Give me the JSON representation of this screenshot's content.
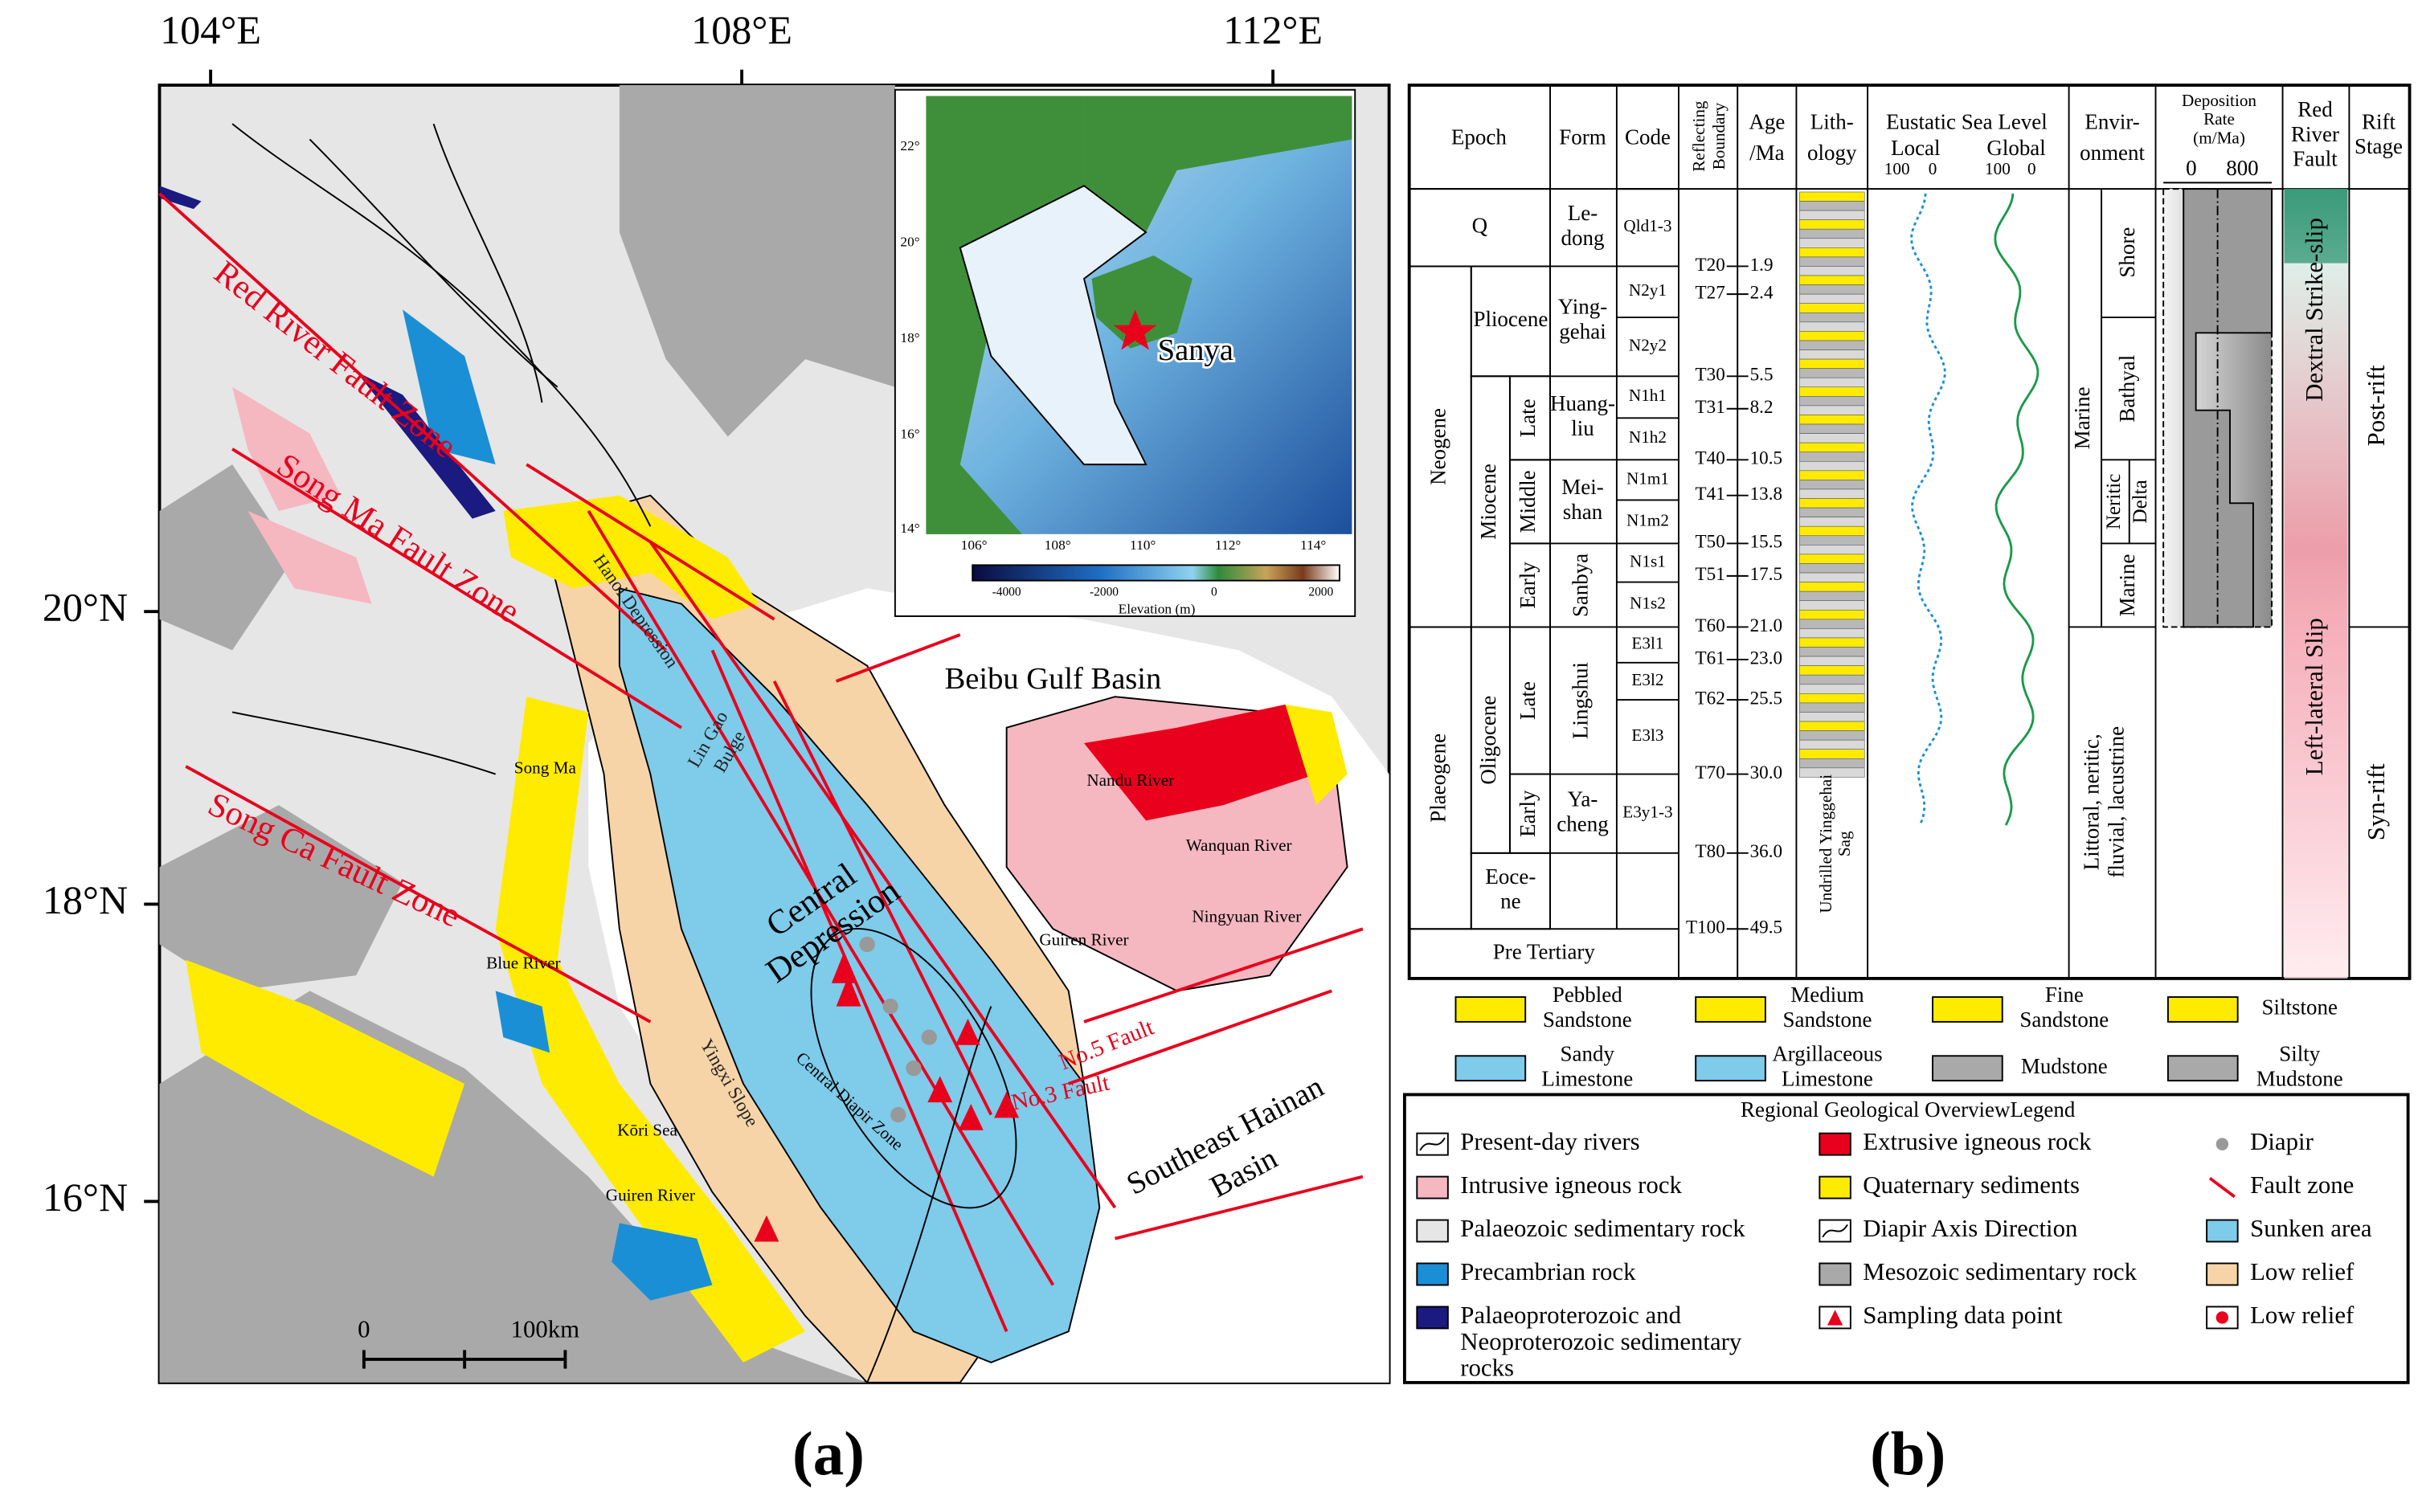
{
  "map": {
    "lon_labels": [
      "104°E",
      "108°E",
      "112°E"
    ],
    "lat_labels": [
      "20°N",
      "18°N",
      "16°N"
    ],
    "labels": [
      [
        "Red River Fault Zone"
      ],
      [
        "Song Ma Fault Zone"
      ],
      [
        "Song Ca Fault Zone"
      ],
      [
        "Hanoi Depression"
      ],
      [
        "Lin Gao",
        "Bulge"
      ],
      [
        "Beibu Gulf Basin"
      ],
      [
        "Central",
        "Depression"
      ],
      [
        "Central Diapir Zone"
      ],
      [
        "Yingxi Slope"
      ],
      [
        "No.5 Fault"
      ],
      [
        "No.3 Fault"
      ],
      [
        "Southeast Hainan",
        "Basin"
      ],
      [
        "Song Ma"
      ],
      [
        "Blue River"
      ],
      [
        "Kōri Sea"
      ],
      [
        "Guiren River"
      ],
      [
        "Nandu River"
      ],
      [
        "Wanquan River"
      ],
      [
        "Guiren River"
      ],
      [
        "Ningyuan River"
      ]
    ],
    "scale": [
      "0",
      "100km"
    ],
    "inset": {
      "lat_labels": [
        "22°",
        "20°",
        "18°",
        "16°",
        "14°"
      ],
      "lon_labels": [
        "106°",
        "108°",
        "110°",
        "112°",
        "114°"
      ],
      "colorbar_ticks": [
        "-4000",
        "-2000",
        "0",
        "2000"
      ],
      "colorbar_label": "Elevation (m)",
      "place": "Sanya"
    }
  },
  "panel_labels": [
    "(a)",
    "(b)"
  ],
  "column": {
    "headers": [
      [
        "Epoch"
      ],
      [
        "Form"
      ],
      [
        "Code"
      ],
      [
        "Reflecting",
        "Boundary"
      ],
      [
        "Age",
        "/Ma"
      ],
      [
        "Lith-",
        "ology"
      ],
      [
        "Eustatic Sea Level"
      ],
      [
        "Local"
      ],
      [
        "Global"
      ],
      [
        "Envir-",
        "onment"
      ],
      [
        "Deposition",
        "Rate",
        "(m/Ma)"
      ],
      [
        "Red",
        "River",
        "Fault"
      ],
      [
        "Rift",
        "Stage"
      ]
    ],
    "sea_level_ticks": [
      "100",
      "0",
      "100",
      "0"
    ],
    "deposition_ticks": [
      "0",
      "800"
    ],
    "epochs": [
      [
        "Q"
      ],
      [
        "Neogene"
      ],
      [
        "Pliocene"
      ],
      [
        "Miocene"
      ],
      [
        "Late"
      ],
      [
        "Middle"
      ],
      [
        "Early"
      ],
      [
        "Plaeogene"
      ],
      [
        "Oligocene"
      ],
      [
        "Late"
      ],
      [
        "Early"
      ],
      [
        "Eoce-",
        "ne"
      ],
      [
        "Pre Tertiary"
      ]
    ],
    "forms": [
      [
        "Le-",
        "dong"
      ],
      [
        "Ying-",
        "gehai"
      ],
      [
        "Huang-",
        "liu"
      ],
      [
        "Mei-",
        "shan"
      ],
      [
        "Sanbya"
      ],
      [
        "Lingshui"
      ],
      [
        "Ya-",
        "cheng"
      ]
    ],
    "codes": [
      "Qld1-3",
      "N2y1",
      "N2y2",
      "N1h1",
      "N1h2",
      "N1m1",
      "N1m2",
      "N1s1",
      "N1s2",
      "E3l1",
      "E3l2",
      "E3l3",
      "E3y1-3"
    ],
    "boundaries": [
      "T20",
      "T27",
      "T30",
      "T31",
      "T40",
      "T41",
      "T50",
      "T51",
      "T60",
      "T61",
      "T62",
      "T70",
      "T80",
      "T100"
    ],
    "ages": [
      "1.9",
      "2.4",
      "5.5",
      "8.2",
      "10.5",
      "13.8",
      "15.5",
      "17.5",
      "21.0",
      "23.0",
      "25.5",
      "30.0",
      "36.0",
      "49.5"
    ],
    "lithology_label": [
      "Undrilled Yinggehai",
      "Sag"
    ],
    "environment": [
      [
        "Marine"
      ],
      [
        "Shore"
      ],
      [
        "Bathyal"
      ],
      [
        "Neritic",
        "Delta"
      ],
      [
        "Marine"
      ],
      [
        "Littoral, neritic,",
        "fluvial, lacustrine"
      ]
    ],
    "fault": [
      "Dextral Strike-slip",
      "Left-lateral Slip"
    ],
    "rift": [
      "Post-rift",
      "Syn-rift"
    ]
  },
  "lithology_legend": [
    [
      "Pebbled",
      "Sandstone"
    ],
    [
      "Medium",
      "Sandstone"
    ],
    [
      "Fine",
      "Sandstone"
    ],
    [
      "Siltstone"
    ],
    [
      "Sandy",
      "Limestone"
    ],
    [
      "Argillaceous",
      "Limestone"
    ],
    [
      "Mudstone"
    ],
    [
      "Silty",
      "Mudstone"
    ]
  ],
  "legend": {
    "title": "Regional Geological OverviewLegend",
    "items": [
      [
        "Present-day rivers"
      ],
      [
        "Extrusive igneous rock"
      ],
      [
        "Diapir"
      ],
      [
        "Intrusive igneous rock"
      ],
      [
        "Quaternary sediments"
      ],
      [
        "Fault zone"
      ],
      [
        "Palaeozoic sedimentary rock"
      ],
      [
        "Diapir Axis Direction"
      ],
      [
        "Sunken area"
      ],
      [
        "Precambrian rock"
      ],
      [
        "Mesozoic sedimentary rock"
      ],
      [
        "Low relief"
      ],
      [
        "Palaeoproterozoic and",
        "Neoproterozoic sedimentary",
        "rocks"
      ],
      [
        "Sampling data point"
      ],
      [
        "Low relief"
      ]
    ]
  }
}
